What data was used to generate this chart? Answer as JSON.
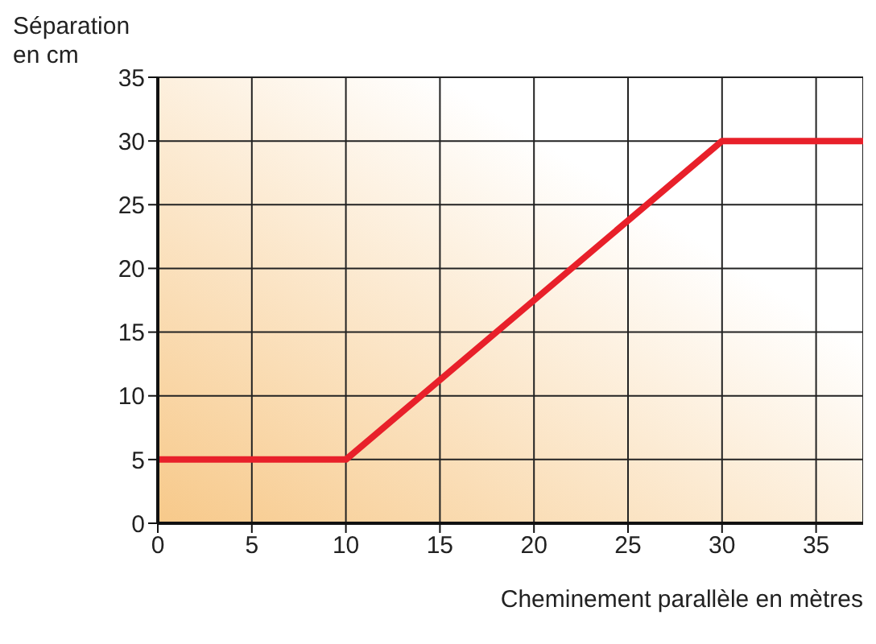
{
  "chart_data": {
    "type": "line",
    "xlabel": "Cheminement parallèle en mètres",
    "ylabel": "Séparation\nen cm",
    "x": [
      0,
      10,
      30,
      37.5
    ],
    "series": [
      {
        "color": "#e8202a",
        "values": [
          5,
          5,
          30,
          30
        ]
      }
    ],
    "xlim": [
      0,
      37.5
    ],
    "xticks": [
      0,
      5,
      10,
      15,
      20,
      25,
      30,
      35
    ],
    "ylim": [
      0,
      35
    ],
    "yticks": [
      0,
      5,
      10,
      15,
      20,
      25,
      30,
      35
    ],
    "grid": true,
    "marker": "none",
    "line_style": "solid"
  }
}
